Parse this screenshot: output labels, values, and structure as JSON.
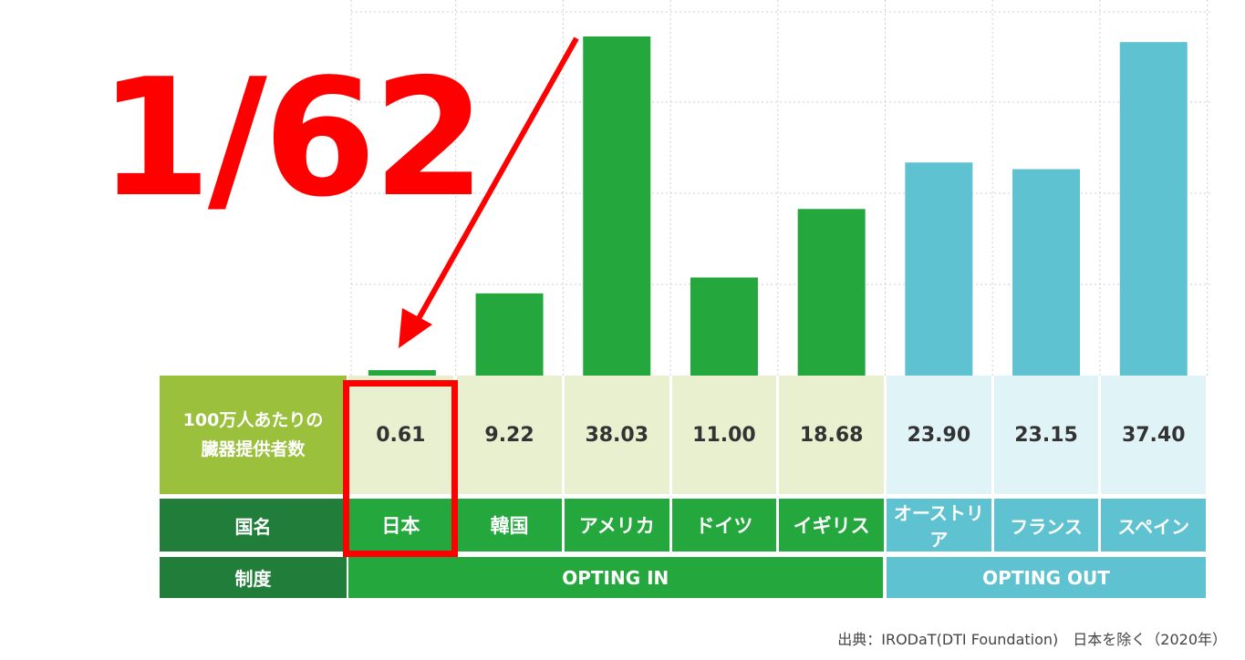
{
  "chart_data": {
    "type": "bar",
    "categories": [
      "日本",
      "韓国",
      "アメリカ",
      "ドイツ",
      "イギリス",
      "オーストリア",
      "フランス",
      "スペイン"
    ],
    "values": [
      0.61,
      9.22,
      38.03,
      11.0,
      18.68,
      23.9,
      23.15,
      37.4
    ],
    "value_labels": [
      "0.61",
      "9.22",
      "38.03",
      "11.00",
      "18.68",
      "23.90",
      "23.15",
      "37.40"
    ],
    "schemes": [
      {
        "label": "OPTING IN",
        "count": 5,
        "color": "#24a83e"
      },
      {
        "label": "OPTING OUT",
        "count": 3,
        "color": "#5fc2d0"
      }
    ],
    "ylim": [
      0,
      38.03
    ],
    "grid": true
  },
  "table": {
    "value_row_label": "100万人あたりの\n臓器提供者数",
    "name_row_label": "国名",
    "scheme_row_label": "制度"
  },
  "annotation": {
    "big_text": "1/62",
    "color": "#ff0000"
  },
  "source": "出典：IRODaT(DTI Foundation)　日本を除く（2020年）"
}
